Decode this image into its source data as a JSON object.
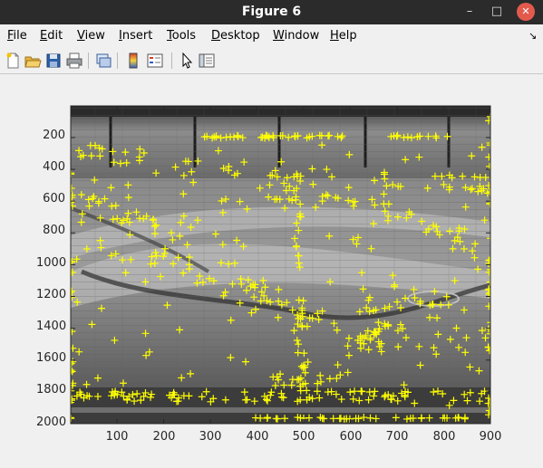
{
  "window": {
    "title": "Figure 6",
    "minimize_glyph": "–",
    "maximize_glyph": "□",
    "close_glyph": "✕"
  },
  "menubar": {
    "items": [
      {
        "mnemonic": "F",
        "rest": "ile"
      },
      {
        "mnemonic": "E",
        "rest": "dit"
      },
      {
        "mnemonic": "V",
        "rest": "iew"
      },
      {
        "mnemonic": "I",
        "rest": "nsert"
      },
      {
        "mnemonic": "T",
        "rest": "ools"
      },
      {
        "mnemonic": "D",
        "rest": "esktop"
      },
      {
        "mnemonic": "W",
        "rest": "indow"
      },
      {
        "mnemonic": "H",
        "rest": "elp"
      }
    ],
    "undock_glyph": "↘"
  },
  "toolbar": {
    "buttons": [
      "new-figure-icon",
      "open-file-icon",
      "save-icon",
      "print-icon",
      "link-plot-icon",
      "colorbar-icon",
      "legend-icon",
      "pointer-icon",
      "property-editor-icon"
    ]
  },
  "axes": {
    "y_ticks": [
      "200",
      "400",
      "600",
      "800",
      "1000",
      "1200",
      "1400",
      "1600",
      "1800",
      "2000"
    ],
    "x_ticks": [
      "100",
      "200",
      "300",
      "400",
      "500",
      "600",
      "700",
      "800",
      "900"
    ],
    "x_range": [
      1,
      900
    ],
    "y_range": [
      1,
      2000
    ],
    "y_reversed": true,
    "marker_color": "#ffff00",
    "marker_symbol": "+"
  }
}
